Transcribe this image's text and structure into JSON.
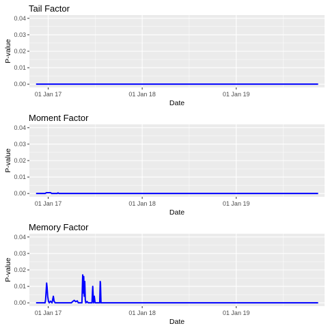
{
  "chart_data": [
    {
      "type": "line",
      "title": "Tail Factor",
      "xlabel": "Date",
      "ylabel": "P-value",
      "x_tick_labels": [
        "01 Jan 17",
        "01 Jan 18",
        "01 Jan 19"
      ],
      "x_tick_dates": [
        "2017-01-01",
        "2018-01-01",
        "2019-01-01"
      ],
      "xlim": [
        "2016-10-20",
        "2019-12-10"
      ],
      "ylim": [
        -0.002,
        0.042
      ],
      "y_ticks": [
        0.0,
        0.01,
        0.02,
        0.03,
        0.04
      ],
      "y_tick_labels": [
        "0.00",
        "0.01",
        "0.02",
        "0.03",
        "0.04"
      ],
      "grid": true,
      "series": [
        {
          "color": "#0000ff",
          "points": [
            [
              "2016-11-15",
              0.0
            ],
            [
              "2019-11-15",
              0.0
            ]
          ]
        }
      ]
    },
    {
      "type": "line",
      "title": "Moment Factor",
      "xlabel": "Date",
      "ylabel": "P-value",
      "x_tick_labels": [
        "01 Jan 17",
        "01 Jan 18",
        "01 Jan 19"
      ],
      "x_tick_dates": [
        "2017-01-01",
        "2018-01-01",
        "2019-01-01"
      ],
      "xlim": [
        "2016-10-20",
        "2019-12-10"
      ],
      "ylim": [
        -0.002,
        0.042
      ],
      "y_ticks": [
        0.0,
        0.01,
        0.02,
        0.03,
        0.04
      ],
      "y_tick_labels": [
        "0.00",
        "0.01",
        "0.02",
        "0.03",
        "0.04"
      ],
      "grid": true,
      "series": [
        {
          "color": "#0000ff",
          "points": [
            [
              "2016-11-15",
              0.0
            ],
            [
              "2016-12-20",
              0.0
            ],
            [
              "2016-12-25",
              0.0005
            ],
            [
              "2017-01-10",
              0.0005
            ],
            [
              "2017-01-15",
              0.0
            ],
            [
              "2017-02-05",
              0.0
            ],
            [
              "2017-02-08",
              0.0004
            ],
            [
              "2017-02-12",
              0.0
            ],
            [
              "2019-11-15",
              0.0
            ]
          ]
        }
      ]
    },
    {
      "type": "line",
      "title": "Memory Factor",
      "xlabel": "Date",
      "ylabel": "P-value",
      "x_tick_labels": [
        "01 Jan 17",
        "01 Jan 18",
        "01 Jan 19"
      ],
      "x_tick_dates": [
        "2017-01-01",
        "2018-01-01",
        "2019-01-01"
      ],
      "xlim": [
        "2016-10-20",
        "2019-12-10"
      ],
      "ylim": [
        -0.002,
        0.042
      ],
      "y_ticks": [
        0.0,
        0.01,
        0.02,
        0.03,
        0.04
      ],
      "y_tick_labels": [
        "0.00",
        "0.01",
        "0.02",
        "0.03",
        "0.04"
      ],
      "grid": true,
      "series": [
        {
          "color": "#0000ff",
          "points": [
            [
              "2016-11-15",
              0.0
            ],
            [
              "2016-12-20",
              0.0
            ],
            [
              "2016-12-22",
              0.002
            ],
            [
              "2016-12-24",
              0.007
            ],
            [
              "2016-12-26",
              0.012
            ],
            [
              "2016-12-28",
              0.009
            ],
            [
              "2016-12-30",
              0.004
            ],
            [
              "2017-01-02",
              0.001
            ],
            [
              "2017-01-05",
              0.0
            ],
            [
              "2017-01-10",
              0.001
            ],
            [
              "2017-01-13",
              0.0005
            ],
            [
              "2017-01-16",
              0.0
            ],
            [
              "2017-01-21",
              0.004
            ],
            [
              "2017-01-24",
              0.001
            ],
            [
              "2017-01-28",
              0.0
            ],
            [
              "2017-04-01",
              0.0
            ],
            [
              "2017-04-06",
              0.0008
            ],
            [
              "2017-04-12",
              0.0015
            ],
            [
              "2017-04-18",
              0.0007
            ],
            [
              "2017-04-24",
              0.0012
            ],
            [
              "2017-04-28",
              0.0
            ],
            [
              "2017-05-12",
              0.0
            ],
            [
              "2017-05-15",
              0.017
            ],
            [
              "2017-05-17",
              0.006
            ],
            [
              "2017-05-19",
              0.016
            ],
            [
              "2017-05-21",
              0.004
            ],
            [
              "2017-05-23",
              0.013
            ],
            [
              "2017-05-25",
              0.002
            ],
            [
              "2017-05-27",
              0.0
            ],
            [
              "2017-06-01",
              0.0008
            ],
            [
              "2017-06-05",
              0.0
            ],
            [
              "2017-06-20",
              0.0
            ],
            [
              "2017-06-23",
              0.01
            ],
            [
              "2017-06-26",
              0.0
            ],
            [
              "2017-06-29",
              0.004
            ],
            [
              "2017-07-02",
              0.0
            ],
            [
              "2017-07-20",
              0.0
            ],
            [
              "2017-07-22",
              0.013
            ],
            [
              "2017-07-23",
              0.012
            ],
            [
              "2017-07-25",
              0.0
            ],
            [
              "2019-11-15",
              0.0
            ]
          ]
        }
      ]
    }
  ]
}
